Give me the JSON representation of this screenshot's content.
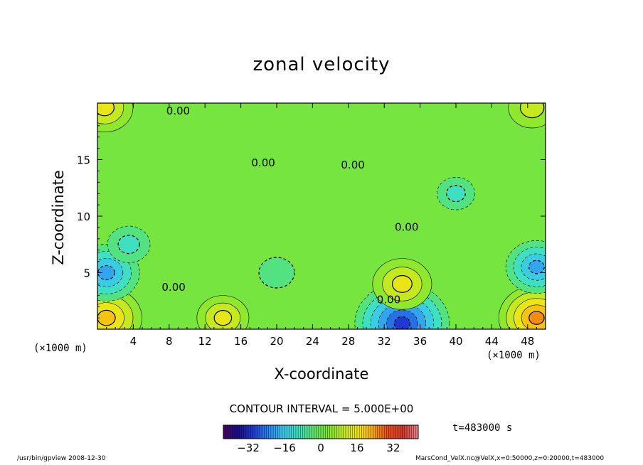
{
  "chart_data": {
    "type": "heatmap",
    "subtype": "filled-contour",
    "title": "zonal velocity",
    "xlabel": "X-coordinate",
    "ylabel": "Z-coordinate",
    "x_unit_left": "(×1000 m)",
    "x_unit_right": "(×1000 m)",
    "xlim": [
      0,
      50
    ],
    "ylim": [
      0,
      20
    ],
    "x_ticks": [
      4,
      8,
      12,
      16,
      20,
      24,
      28,
      32,
      36,
      40,
      44,
      48
    ],
    "y_ticks": [
      5,
      10,
      15
    ],
    "contour_interval_text": "CONTOUR INTERVAL = 5.000E+00",
    "contour_labels": [
      {
        "text": "0.00",
        "x": 9,
        "y": 19.0
      },
      {
        "text": "0.00",
        "x": 18.5,
        "y": 14.4
      },
      {
        "text": "0.00",
        "x": 28.5,
        "y": 14.2
      },
      {
        "text": "0.00",
        "x": 34.5,
        "y": 8.7
      },
      {
        "text": "0.00",
        "x": 8.5,
        "y": 3.4
      },
      {
        "text": "0.00",
        "x": 32.5,
        "y": 2.3
      }
    ],
    "field_features": [
      {
        "x": 1.0,
        "z": 1.0,
        "value": 20
      },
      {
        "x": 14.0,
        "z": 1.0,
        "value": 12
      },
      {
        "x": 1.0,
        "z": 5.0,
        "value": -18
      },
      {
        "x": 3.5,
        "z": 7.5,
        "value": -8
      },
      {
        "x": 34.0,
        "z": 0.5,
        "value": -30
      },
      {
        "x": 34.0,
        "z": 4.0,
        "value": 15
      },
      {
        "x": 49.0,
        "z": 1.0,
        "value": 22
      },
      {
        "x": 49.0,
        "z": 5.5,
        "value": -16
      },
      {
        "x": 0.8,
        "z": 19.6,
        "value": 14
      },
      {
        "x": 48.5,
        "z": 19.6,
        "value": 10
      },
      {
        "x": 40.0,
        "z": 12.0,
        "value": -6
      },
      {
        "x": 20.0,
        "z": 5.0,
        "value": -5
      }
    ],
    "colorbar": {
      "min": -43,
      "max": 43,
      "ticks": [
        -32,
        -16,
        0,
        16,
        32
      ],
      "colors": [
        "#4b0066",
        "#1a0f8c",
        "#1f3ad6",
        "#2a86ee",
        "#38c6ec",
        "#3fe0c2",
        "#5ae36a",
        "#7de634",
        "#c4e81e",
        "#f6e614",
        "#f7a40f",
        "#ee4a1c",
        "#cf3a2a",
        "#ec8896"
      ]
    },
    "time_label": "t=483000 s",
    "footer_left": "/usr/bin/gpview  2008-12-30",
    "footer_right": "MarsCond_VelX.nc@VelX,x=0:50000,z=0:20000,t=483000"
  }
}
